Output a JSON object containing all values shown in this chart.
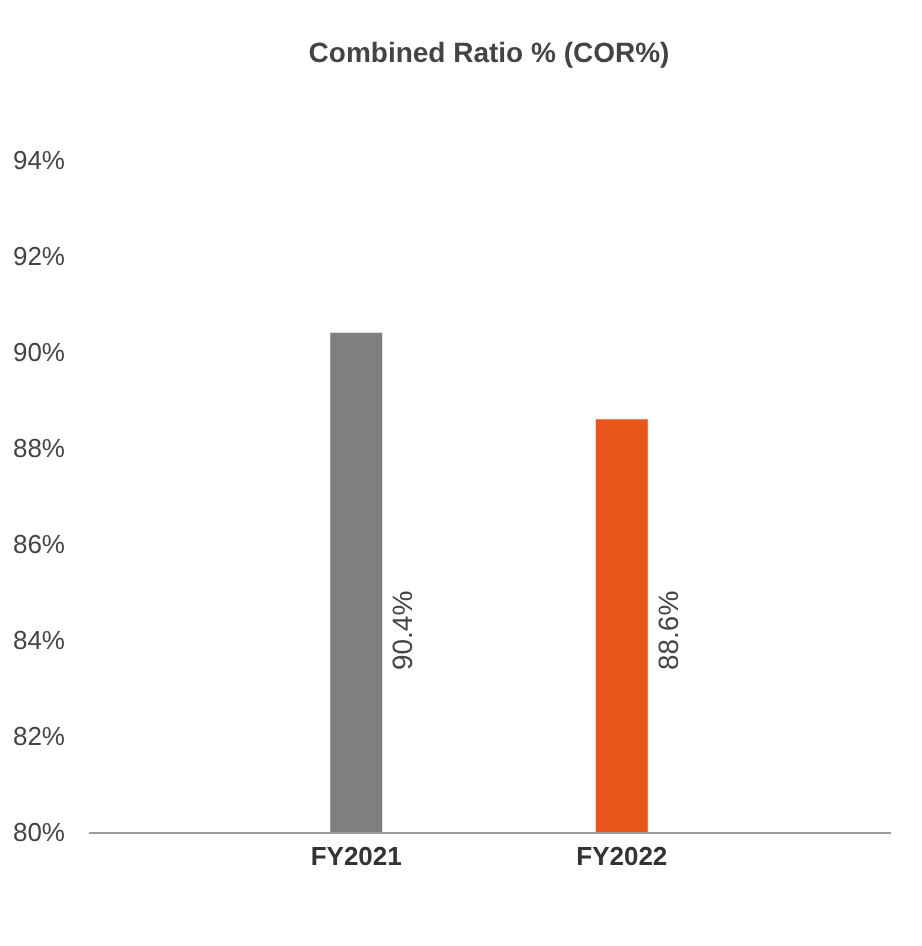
{
  "chart_data": {
    "type": "bar",
    "title": "Combined Ratio % (COR%)",
    "categories": [
      "FY2021",
      "FY2022"
    ],
    "values": [
      90.4,
      88.6
    ],
    "colors": [
      "#7f7f7f",
      "#e8561c"
    ],
    "value_labels": [
      "90.4%",
      "88.6%"
    ],
    "ylim": [
      80,
      94
    ],
    "yticks": [
      {
        "value": 80,
        "label": "80%"
      },
      {
        "value": 82,
        "label": "82%"
      },
      {
        "value": 84,
        "label": "84%"
      },
      {
        "value": 86,
        "label": "86%"
      },
      {
        "value": 88,
        "label": "88%"
      },
      {
        "value": 90,
        "label": "90%"
      },
      {
        "value": 92,
        "label": "92%"
      },
      {
        "value": 94,
        "label": "94%"
      }
    ],
    "grid": false
  }
}
